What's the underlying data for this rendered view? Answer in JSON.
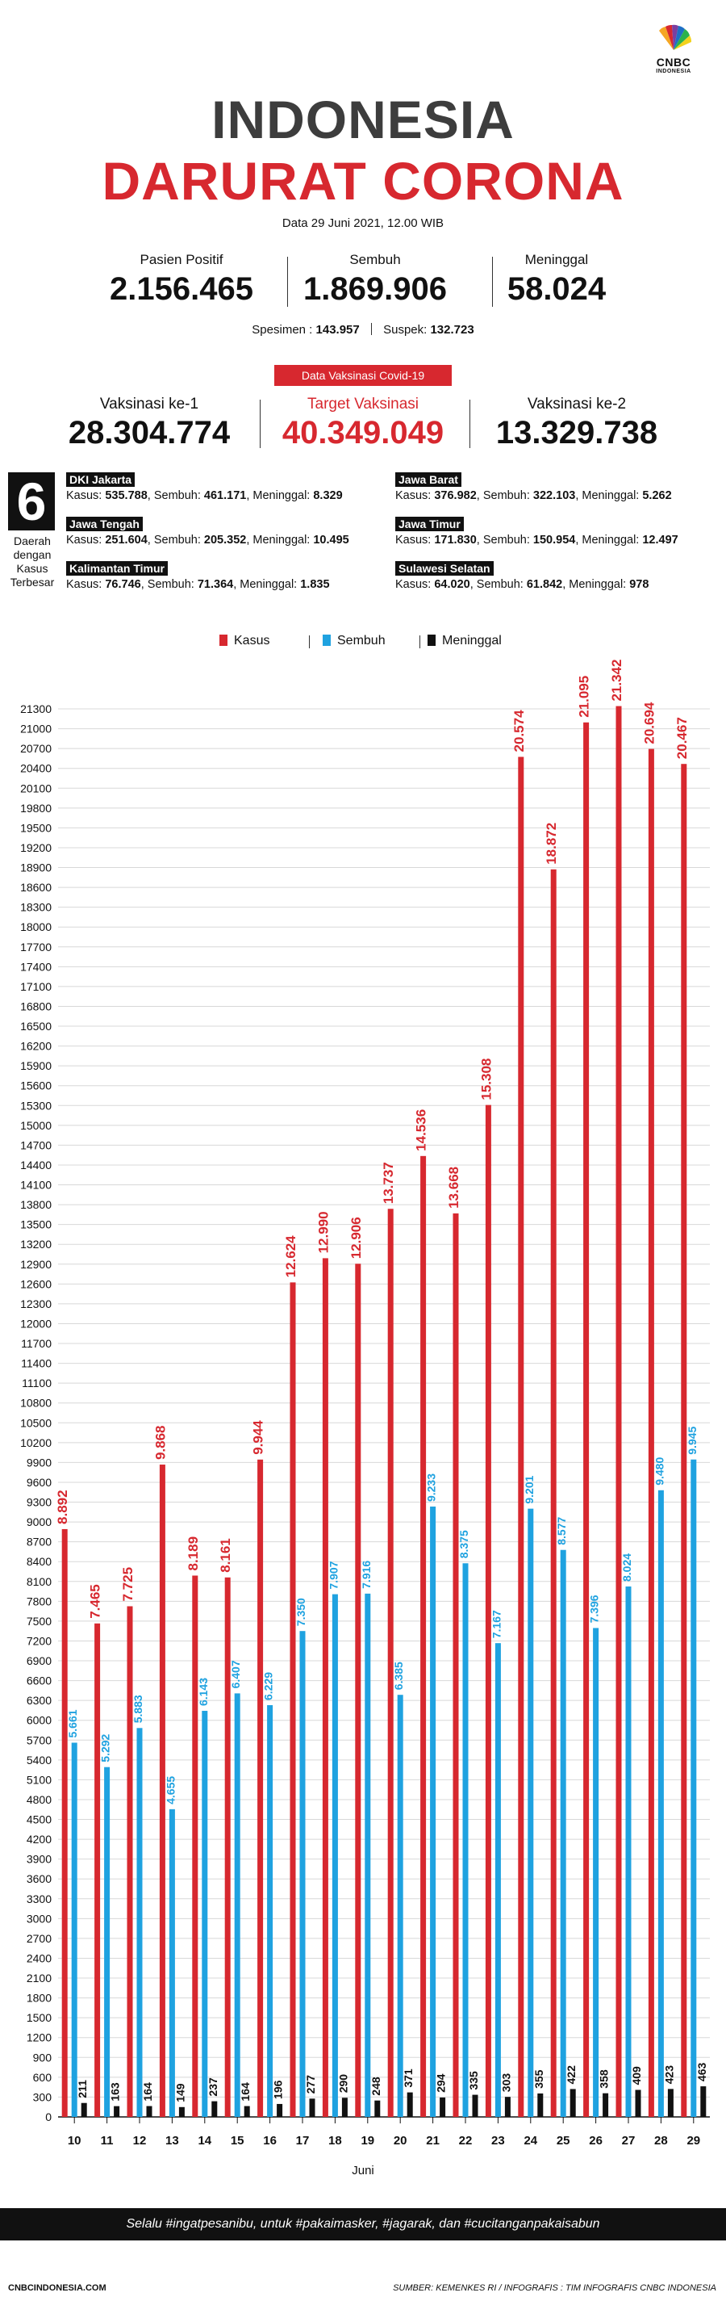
{
  "header": {
    "brand": "CNBC",
    "brand_sub": "INDONESIA",
    "title_line1": "INDONESIA",
    "title_line2": "DARURAT CORONA",
    "date": "Data 29 Juni 2021, 12.00 WIB"
  },
  "stats": {
    "positif_label": "Pasien Positif",
    "positif_value": "2.156.465",
    "sembuh_label": "Sembuh",
    "sembuh_value": "1.869.906",
    "meninggal_label": "Meninggal",
    "meninggal_value": "58.024",
    "spesimen_label": "Spesimen : ",
    "spesimen_value": "143.957",
    "suspek_label": "Suspek: ",
    "suspek_value": "132.723"
  },
  "vaksin": {
    "badge": "Data Vaksinasi Covid-19",
    "ke1_label": "Vaksinasi ke-1",
    "ke1_value": "28.304.774",
    "target_label": "Target Vaksinasi",
    "target_value": "40.349.049",
    "ke2_label": "Vaksinasi ke-2",
    "ke2_value": "13.329.738"
  },
  "regions": {
    "count": "6",
    "caption": [
      "Daerah",
      "dengan",
      "Kasus",
      "Terbesar"
    ],
    "list": [
      {
        "name": "DKI Jakarta",
        "k": "535.788",
        "s": "461.171",
        "m": "8.329"
      },
      {
        "name": "Jawa Barat",
        "k": "376.982",
        "s": "322.103",
        "m": "5.262"
      },
      {
        "name": "Jawa Tengah",
        "k": "251.604",
        "s": "205.352",
        "m": "10.495"
      },
      {
        "name": "Jawa Timur",
        "k": "171.830",
        "s": "150.954",
        "m": "12.497"
      },
      {
        "name": "Kalimantan Timur",
        "k": "76.746",
        "s": "71.364",
        "m": "1.835"
      },
      {
        "name": "Sulawesi Selatan",
        "k": "64.020",
        "s": "61.842",
        "m": "978"
      }
    ],
    "kasus_word": "Kasus: ",
    "sembuh_word": ", Sembuh: ",
    "meninggal_word": ", Meninggal: "
  },
  "chart_data": {
    "type": "bar",
    "categories": [
      "10",
      "11",
      "12",
      "13",
      "14",
      "15",
      "16",
      "17",
      "18",
      "19",
      "20",
      "21",
      "22",
      "23",
      "24",
      "25",
      "26",
      "27",
      "28",
      "29"
    ],
    "series": [
      {
        "name": "Kasus",
        "color": "#d7282f",
        "values": [
          8892,
          7465,
          7725,
          9868,
          8189,
          8161,
          9944,
          12624,
          12990,
          12906,
          13737,
          14536,
          13668,
          15308,
          20574,
          18872,
          21095,
          21342,
          20694,
          20467
        ],
        "labels": [
          "8.892",
          "7.465",
          "7.725",
          "9.868",
          "8.189",
          "8.161",
          "9.944",
          "12.624",
          "12.990",
          "12.906",
          "13.737",
          "14.536",
          "13.668",
          "15.308",
          "20.574",
          "18.872",
          "21.095",
          "21.342",
          "20.694",
          "20.467"
        ]
      },
      {
        "name": "Sembuh",
        "color": "#1fa2e0",
        "values": [
          5661,
          5292,
          5883,
          4655,
          6143,
          6407,
          6229,
          7350,
          7907,
          7916,
          6385,
          9233,
          8375,
          7167,
          9201,
          8577,
          7396,
          8024,
          9480,
          9945
        ],
        "labels": [
          "5.661",
          "5.292",
          "5.883",
          "4.655",
          "6.143",
          "6.407",
          "6.229",
          "7.350",
          "7.907",
          "7.916",
          "6.385",
          "9.233",
          "8.375",
          "7.167",
          "9.201",
          "8.577",
          "7.396",
          "8.024",
          "9.480",
          "9.945"
        ]
      },
      {
        "name": "Meninggal",
        "color": "#111111",
        "values": [
          211,
          163,
          164,
          149,
          237,
          164,
          196,
          277,
          290,
          248,
          371,
          294,
          335,
          303,
          355,
          422,
          358,
          409,
          423,
          463
        ],
        "labels": [
          "211",
          "163",
          "164",
          "149",
          "237",
          "164",
          "196",
          "277",
          "290",
          "248",
          "371",
          "294",
          "335",
          "303",
          "355",
          "422",
          "358",
          "409",
          "423",
          "463"
        ]
      }
    ],
    "xlabel": "Juni",
    "ylim": [
      0,
      21300
    ],
    "ytick_step": 300,
    "grid": true,
    "legend": "top"
  },
  "footer": {
    "slogan": "Selalu #ingatpesanibu, untuk #pakaimasker, #jagarak, dan #cucitanganpakaisabun",
    "site": "CNBCINDONESIA.COM",
    "source": "SUMBER: KEMENKES RI / INFOGRAFIS : TIM INFOGRAFIS CNBC INDONESIA"
  }
}
